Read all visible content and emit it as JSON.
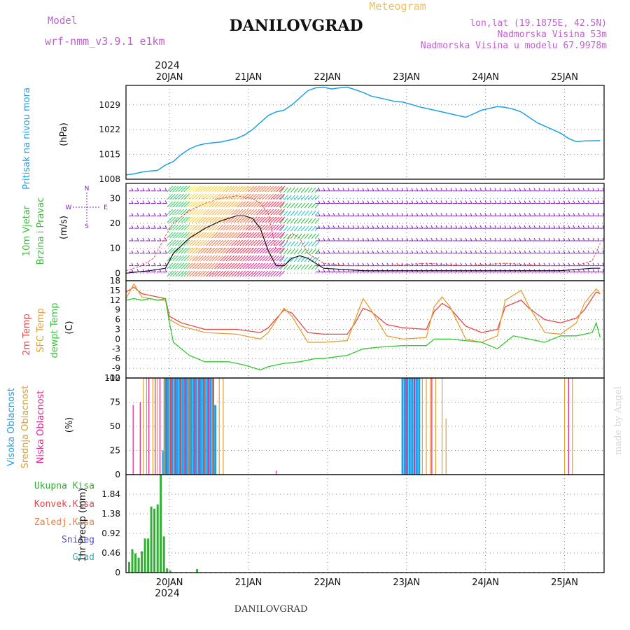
{
  "header": {
    "model_label": "Model",
    "model_name": "wrf-nmm_v3.9.1 e1km",
    "station": "DANILOVGRAD",
    "product": "Meteogram",
    "lonlat": "lon,lat (19.1875E, 42.5N)",
    "elevation": "Nadmorska Visina 53m",
    "model_elevation": "Nadmorska Visina u modelu 67.9978m",
    "footer_station": "DANILOVGRAD",
    "credit": "made by Angel",
    "year_top": "2024",
    "year_bottom": "2024"
  },
  "colors": {
    "magenta_text": "#c060d0",
    "orange_text": "#f0c060",
    "pressure": "#1ca0e8",
    "temp2m": "#e84848",
    "sfc_temp": "#e0a030",
    "dewpoint": "#30c830",
    "high_cloud": "#1ca0e8",
    "mid_cloud": "#e0a030",
    "low_cloud": "#e0208c",
    "precip_total": "#30b030",
    "precip_conv": "#e84848",
    "gust": "#e84848",
    "barbs": "#8020c0"
  },
  "chart_data": [
    {
      "type": "line",
      "panel": "pressure",
      "ylabel_lines": [
        "Pritisak na nivou mora",
        "(hPa)"
      ],
      "yticks": [
        "1008",
        "1015",
        "1022",
        "1029"
      ],
      "ylim": [
        1008,
        1034.5
      ],
      "x_days": [
        "20JAN",
        "21JAN",
        "22JAN",
        "23JAN",
        "24JAN",
        "25JAN"
      ],
      "series": [
        {
          "x": [
            19.5,
            19.6,
            19.7,
            19.8,
            19.9,
            20.0,
            20.1,
            20.2,
            20.3,
            20.4,
            20.5,
            20.6,
            20.7,
            20.8,
            20.9,
            21.0,
            21.1,
            21.2,
            21.3,
            21.4,
            21.5,
            21.6,
            21.7,
            21.8,
            21.9,
            22.0,
            22.1,
            22.2,
            22.3,
            22.4,
            22.5,
            22.6,
            22.7,
            22.8,
            22.9,
            23.0,
            23.1,
            23.2,
            23.3,
            23.4,
            23.5,
            23.6,
            23.7,
            23.8,
            23.9,
            24.0,
            24.1,
            24.2,
            24.3,
            24.4,
            24.5,
            24.6,
            24.7,
            24.8,
            24.9,
            25.0,
            25.1,
            25.2,
            25.3,
            25.5
          ],
          "values": [
            1009.2,
            1009.5,
            1010.0,
            1010.3,
            1010.5,
            1012.0,
            1013.0,
            1015.0,
            1016.5,
            1017.5,
            1018.0,
            1018.3,
            1018.5,
            1019.0,
            1019.5,
            1020.5,
            1022.0,
            1024.0,
            1026.0,
            1027.0,
            1027.5,
            1029.0,
            1031.0,
            1033.0,
            1033.8,
            1034.0,
            1033.5,
            1033.8,
            1034.0,
            1033.3,
            1032.5,
            1031.5,
            1031.0,
            1030.5,
            1030.0,
            1029.8,
            1029.2,
            1028.5,
            1028.0,
            1027.5,
            1027.0,
            1026.5,
            1026.0,
            1025.5,
            1026.5,
            1027.5,
            1028.0,
            1028.5,
            1028.3,
            1027.8,
            1027.0,
            1025.5,
            1024.0,
            1023.0,
            1022.0,
            1021.0,
            1019.5,
            1018.6,
            1018.8,
            1018.9
          ]
        }
      ]
    },
    {
      "type": "line",
      "panel": "wind",
      "ylabel_lines": [
        "10m Vjetar",
        "Brzina i Pravac",
        "(m/s)"
      ],
      "compass": [
        "N",
        "S",
        "E",
        "W"
      ],
      "yticks": [
        "0",
        "10",
        "20",
        "30"
      ],
      "ylim": [
        -3,
        36
      ],
      "series": [
        {
          "name": "speed",
          "x": [
            19.5,
            19.8,
            20.0,
            20.1,
            20.3,
            20.5,
            20.7,
            20.9,
            21.0,
            21.1,
            21.2,
            21.3,
            21.4,
            21.5,
            21.6,
            21.7,
            21.8,
            22.0,
            22.5,
            23.0,
            23.5,
            24.0,
            24.5,
            25.0,
            25.4,
            25.5
          ],
          "values": [
            0,
            1,
            2,
            8,
            14,
            18,
            21,
            23,
            23,
            22,
            18,
            9,
            3,
            3,
            6,
            7,
            6,
            2,
            1,
            1,
            1,
            1,
            1,
            1,
            2,
            2
          ]
        },
        {
          "name": "gust",
          "x": [
            19.5,
            19.7,
            19.85,
            20.0,
            20.1,
            20.3,
            20.5,
            20.7,
            20.9,
            21.1,
            21.2,
            21.3,
            21.4,
            21.5,
            21.6,
            21.7,
            21.8,
            22.0,
            22.3,
            22.8,
            23.3,
            23.8,
            24.3,
            24.8,
            25.2,
            25.4,
            25.5
          ],
          "values": [
            1,
            3,
            6,
            15,
            20,
            25,
            28,
            30,
            31,
            30,
            28,
            24,
            9,
            11,
            16,
            14,
            8,
            4,
            3,
            3,
            4,
            3,
            4,
            3,
            3,
            5,
            12
          ]
        }
      ]
    },
    {
      "type": "line",
      "panel": "temperature",
      "ylabel_lines": [
        "2m Temp",
        "SFC Temp",
        "dewpt Temp",
        "(C)"
      ],
      "yticks": [
        "18",
        "15",
        "12",
        "9",
        "6",
        "3",
        "0",
        "-3",
        "-6",
        "-9",
        "-12"
      ],
      "ylim": [
        -12,
        18
      ],
      "series": [
        {
          "name": "2m Temp",
          "x": [
            19.5,
            19.6,
            19.7,
            19.8,
            19.9,
            20.0,
            20.05,
            20.2,
            20.5,
            20.9,
            21.2,
            21.3,
            21.5,
            21.6,
            21.8,
            22.0,
            22.3,
            22.4,
            22.5,
            22.6,
            22.8,
            23.0,
            23.3,
            23.4,
            23.5,
            23.6,
            23.8,
            24.0,
            24.2,
            24.3,
            24.5,
            24.6,
            24.8,
            25.0,
            25.2,
            25.3,
            25.45,
            25.5
          ],
          "values": [
            14.5,
            16,
            14,
            13.5,
            13,
            12.5,
            7,
            5,
            3,
            3,
            2,
            3.5,
            9,
            8,
            2,
            1.5,
            1.5,
            5,
            9.5,
            8.5,
            4.5,
            3.5,
            3,
            8.5,
            11,
            9.5,
            4,
            2,
            3,
            10,
            12,
            9.5,
            6,
            5,
            6.5,
            9,
            14.5,
            14
          ]
        },
        {
          "name": "SFC Temp",
          "x": [
            19.5,
            19.6,
            19.7,
            19.8,
            19.9,
            20.0,
            20.05,
            20.2,
            20.5,
            20.9,
            21.2,
            21.3,
            21.5,
            21.6,
            21.8,
            22.0,
            22.3,
            22.4,
            22.5,
            22.6,
            22.8,
            23.0,
            23.3,
            23.4,
            23.5,
            23.6,
            23.8,
            24.0,
            24.2,
            24.3,
            24.5,
            24.6,
            24.8,
            25.0,
            25.2,
            25.3,
            25.45,
            25.5
          ],
          "values": [
            12.5,
            17,
            13,
            12.5,
            12,
            12,
            6,
            4,
            2,
            1.5,
            0,
            2,
            9.5,
            7,
            -1,
            -1,
            -0.5,
            6,
            12.5,
            9,
            1,
            0,
            0.5,
            10,
            13,
            10,
            0,
            -1,
            1,
            12,
            15,
            10,
            2,
            1.5,
            5,
            11,
            15.5,
            14
          ]
        },
        {
          "name": "dewpt Temp",
          "x": [
            19.5,
            19.6,
            19.7,
            19.8,
            19.9,
            20.0,
            20.05,
            20.1,
            20.3,
            20.5,
            20.8,
            21.0,
            21.2,
            21.3,
            21.5,
            21.7,
            21.9,
            22.0,
            22.3,
            22.5,
            22.7,
            23.0,
            23.3,
            23.4,
            23.6,
            24.0,
            24.2,
            24.4,
            24.6,
            24.8,
            25.0,
            25.2,
            25.4,
            25.45,
            25.5
          ],
          "values": [
            12,
            12.5,
            12,
            12.5,
            12,
            12.5,
            5,
            -1,
            -5,
            -7,
            -7,
            -8,
            -9.5,
            -8.5,
            -7.5,
            -7,
            -6,
            -6,
            -5,
            -3,
            -2.5,
            -2,
            -2,
            0,
            0,
            -1,
            -3,
            1,
            0,
            -1,
            1,
            1,
            2,
            5,
            0.5
          ]
        }
      ]
    },
    {
      "type": "bar",
      "panel": "cloud",
      "ylabel_lines": [
        "Visoka Oblacnost",
        "Srednja Oblacnost",
        "Niska Oblacnost",
        "(%)"
      ],
      "yticks": [
        "0",
        "25",
        "50",
        "75",
        "100"
      ],
      "ylim": [
        0,
        100
      ],
      "series": [
        {
          "name": "Visoka Oblacnost",
          "x": [
            19.97,
            20.0,
            20.03,
            20.06,
            20.09,
            20.12,
            20.15,
            20.18,
            20.21,
            20.24,
            20.27,
            20.3,
            20.33,
            20.36,
            20.39,
            20.42,
            20.45,
            20.48,
            20.51,
            20.54,
            20.57,
            20.6,
            20.63,
            23.0,
            23.03,
            23.06,
            23.09,
            23.12,
            23.15,
            23.18,
            23.21
          ],
          "values": [
            25,
            100,
            100,
            100,
            100,
            100,
            100,
            100,
            100,
            100,
            100,
            100,
            100,
            100,
            100,
            100,
            100,
            100,
            100,
            100,
            100,
            100,
            72,
            100,
            100,
            100,
            100,
            100,
            100,
            100,
            100
          ]
        },
        {
          "name": "Srednja Oblacnost",
          "x": [
            19.72,
            19.76,
            19.84,
            19.9,
            19.98,
            20.05,
            20.1,
            20.2,
            20.3,
            20.4,
            20.5,
            20.6,
            20.68,
            20.73,
            23.25,
            23.3,
            23.35,
            23.42,
            23.5,
            23.55,
            25.05,
            25.1,
            25.15
          ],
          "values": [
            100,
            100,
            100,
            100,
            100,
            100,
            100,
            100,
            100,
            100,
            100,
            100,
            100,
            100,
            100,
            100,
            100,
            100,
            100,
            58,
            100,
            100,
            100
          ]
        },
        {
          "name": "Niska Oblacnost",
          "x": [
            19.59,
            19.68,
            19.79,
            19.87,
            19.93,
            20.01,
            20.07,
            20.13,
            20.19,
            20.25,
            20.31,
            20.37,
            20.43,
            20.49,
            20.55,
            20.61,
            21.4,
            23.05,
            23.15,
            23.37,
            25.1
          ],
          "values": [
            72,
            75,
            100,
            100,
            100,
            100,
            100,
            100,
            100,
            100,
            100,
            100,
            100,
            100,
            100,
            100,
            4,
            100,
            100,
            100,
            100
          ]
        }
      ]
    },
    {
      "type": "bar",
      "panel": "precip",
      "ylabel_lines": [
        "1hr Precip (mm)"
      ],
      "legend": [
        "Ukupna Kisa",
        "Konvek.Kisa",
        "Zaledj.Kisa",
        "Snijeg",
        "Grad"
      ],
      "legend_colors": [
        "#30b030",
        "#e84848",
        "#f08040",
        "#5050d0",
        "#30b0b0"
      ],
      "yticks": [
        "0",
        "0.46",
        "0.92",
        "1.38",
        "1.84"
      ],
      "ylim": [
        0,
        2.3
      ],
      "x_days": [
        "20JAN",
        "21JAN",
        "22JAN",
        "23JAN",
        "24JAN",
        "25JAN"
      ],
      "series": [
        {
          "name": "Ukupna Kisa",
          "x": [
            19.54,
            19.58,
            19.62,
            19.66,
            19.7,
            19.74,
            19.78,
            19.82,
            19.86,
            19.9,
            19.94,
            19.98,
            20.02,
            20.06,
            20.1,
            20.14,
            20.4
          ],
          "values": [
            0.25,
            0.55,
            0.45,
            0.35,
            0.5,
            0.8,
            0.8,
            1.55,
            1.5,
            1.6,
            2.3,
            0.85,
            0.1,
            0.05,
            0.0,
            0.0,
            0.08
          ]
        }
      ]
    }
  ]
}
